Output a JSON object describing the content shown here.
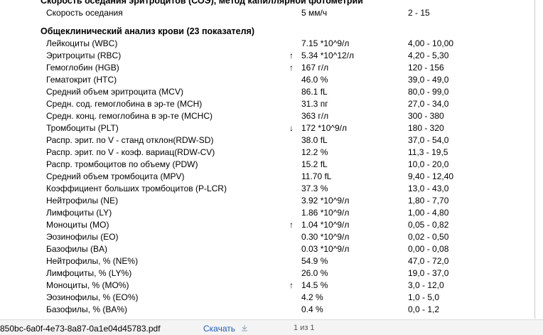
{
  "document": {
    "heading": "Скорость оседания эритроцитов (СОЭ), метод капиллярной фотометрии",
    "esr_row": {
      "name": "Скорость оседания",
      "value": "5 мм/ч",
      "range": "2 - 15"
    },
    "section_title": "Общеклинический анализ крови (23 показателя)",
    "rows": [
      {
        "name": "Лейкоциты (WBC)",
        "value": "7.15 *10^9/л",
        "range": "4,00 - 10,00"
      },
      {
        "name": "Эритроциты (RBC)",
        "flag": "↑",
        "value": "5.34 *10^12/л",
        "range": "4,20 - 5,30"
      },
      {
        "name": "Гемоглобин (HGB)",
        "flag": "↑",
        "value": "167 г/л",
        "range": "120 - 156"
      },
      {
        "name": "Гематокрит (HTC)",
        "value": "46.0 %",
        "range": "39,0 - 49,0"
      },
      {
        "name": "Средний объем эритроцита (MCV)",
        "value": "86.1 fL",
        "range": "80,0 - 99,0"
      },
      {
        "name": "Средн. сод. гемоглобина в эр-те (MCH)",
        "value": "31.3 пг",
        "range": "27,0 - 34,0"
      },
      {
        "name": "Средн. конц. гемоглобина в эр-те (MCHC)",
        "value": "363 г/л",
        "range": "300 - 380"
      },
      {
        "name": "Тромбоциты (PLT)",
        "flag": "↓",
        "value": "172 *10^9/л",
        "range": "180 - 320"
      },
      {
        "name": "Распр. эрит. по V - станд отклон(RDW-SD)",
        "value": "38.0 fL",
        "range": "37,0 - 54,0"
      },
      {
        "name": "Распр. эрит. по V - коэф. вариац(RDW-CV)",
        "value": "12.2 %",
        "range": "11,3 - 19,5"
      },
      {
        "name": "Распр. тромбоцитов по объему (PDW)",
        "value": "15.2 fL",
        "range": "10,0 - 20,0"
      },
      {
        "name": "Средний объем тромбоцита (MPV)",
        "value": "11.70 fL",
        "range": "9,40 - 12,40"
      },
      {
        "name": "Коэффициент больших тромбоцитов (P-LCR)",
        "value": "37.3 %",
        "range": "13,0 - 43,0"
      },
      {
        "name": "Нейтрофилы (NE)",
        "value": "3.92 *10^9/л",
        "range": "1,80 - 7,70"
      },
      {
        "name": "Лимфоциты (LY)",
        "value": "1.86 *10^9/л",
        "range": "1,00 - 4,80"
      },
      {
        "name": "Моноциты (MO)",
        "flag": "↑",
        "value": "1.04 *10^9/л",
        "range": "0,05 - 0,82"
      },
      {
        "name": "Эозинофилы (EO)",
        "value": "0.30 *10^9/л",
        "range": "0,02 - 0,50"
      },
      {
        "name": "Базофилы (BA)",
        "value": "0.03 *10^9/л",
        "range": "0,00 - 0,08"
      },
      {
        "name": "Нейтрофилы, % (NE%)",
        "value": "54.9 %",
        "range": "47,0 - 72,0"
      },
      {
        "name": "Лимфоциты, % (LY%)",
        "value": "26.0 %",
        "range": "19,0 - 37,0"
      },
      {
        "name": "Моноциты, % (MO%)",
        "flag": "↑",
        "value": "14.5 %",
        "range": "3,0 - 12,0"
      },
      {
        "name": "Эозинофилы, % (EO%)",
        "value": "4.2 %",
        "range": "1,0 - 5,0"
      },
      {
        "name": "Базофилы, % (BA%)",
        "value": "0.4 %",
        "range": "0,0 - 1,2"
      }
    ]
  },
  "download_bar": {
    "filename": "850bc-6a0f-4e73-8a87-0a1e04d45783.pdf",
    "download": "Скачать",
    "pages": "1 из 1"
  }
}
